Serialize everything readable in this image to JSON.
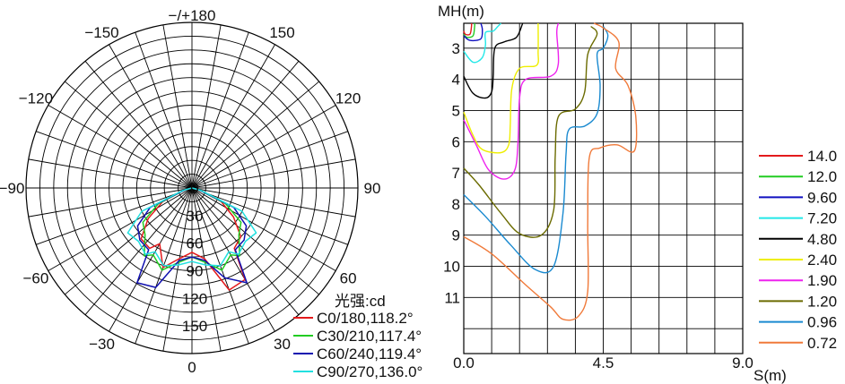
{
  "polar": {
    "angle_labels": [
      {
        "text": "−/+180",
        "deg": 180
      },
      {
        "text": "−150",
        "deg": -150
      },
      {
        "text": "150",
        "deg": 150
      },
      {
        "text": "−120",
        "deg": -120
      },
      {
        "text": "120",
        "deg": 120
      },
      {
        "text": "−90",
        "deg": -90
      },
      {
        "text": "90",
        "deg": 90
      },
      {
        "text": "−60",
        "deg": -60
      },
      {
        "text": "60",
        "deg": 60
      },
      {
        "text": "−30",
        "deg": -30
      },
      {
        "text": "30",
        "deg": 30
      },
      {
        "text": "0",
        "deg": 0
      }
    ],
    "radial_labels": [
      {
        "text": "0",
        "value": 0
      },
      {
        "text": "30",
        "value": 30
      },
      {
        "text": "60",
        "value": 60
      },
      {
        "text": "90",
        "value": 90
      },
      {
        "text": "120",
        "value": 120
      },
      {
        "text": "150",
        "value": 150
      }
    ],
    "unit_label": "光强:cd",
    "legend": [
      {
        "text": "C0/180,118.2°",
        "color": "#e31a1c"
      },
      {
        "text": "C30/210,117.4°",
        "color": "#22cc22"
      },
      {
        "text": "C60/240,119.4°",
        "color": "#1010b0"
      },
      {
        "text": "C90/270,136.0°",
        "color": "#22e0e0"
      }
    ]
  },
  "contour": {
    "ylabel": "MH(m)",
    "xlabel": "S(m)",
    "y_ticks": [
      "3",
      "4",
      "5",
      "6",
      "7",
      "8",
      "9",
      "10",
      "11"
    ],
    "x_ticks": [
      "0.0",
      "4.5",
      "9.0"
    ],
    "legend": [
      {
        "text": "14.0",
        "color": "#e31a1c"
      },
      {
        "text": "12.0",
        "color": "#22cc22"
      },
      {
        "text": "9.60",
        "color": "#1010c0"
      },
      {
        "text": "7.20",
        "color": "#22e8e8"
      },
      {
        "text": "4.80",
        "color": "#000000"
      },
      {
        "text": "2.40",
        "color": "#eeee00"
      },
      {
        "text": "1.90",
        "color": "#ee22ee"
      },
      {
        "text": "1.20",
        "color": "#6b6b00"
      },
      {
        "text": "0.96",
        "color": "#1a8ad0"
      },
      {
        "text": "0.72",
        "color": "#f07a3a"
      }
    ]
  },
  "chart_data": [
    {
      "type": "polar",
      "unit": "光强:cd",
      "r_ticks": [
        0,
        30,
        60,
        90,
        120,
        150
      ],
      "angle_ticks": [
        0,
        30,
        60,
        90,
        120,
        150,
        180,
        -150,
        -120,
        -90,
        -60,
        -30
      ],
      "series": [
        {
          "name": "C0/180,118.2°",
          "angles": [
            -75,
            -65,
            -55,
            -45,
            -35,
            -30,
            -20,
            -10,
            0,
            10,
            20,
            30,
            35,
            45,
            55,
            65,
            75
          ],
          "values": [
            8,
            35,
            58,
            78,
            80,
            70,
            92,
            78,
            70,
            78,
            118,
            115,
            80,
            75,
            55,
            35,
            8
          ]
        },
        {
          "name": "C30/210,117.4°",
          "angles": [
            -75,
            -65,
            -55,
            -45,
            -35,
            -30,
            -20,
            -10,
            0,
            10,
            20,
            30,
            35,
            45,
            55,
            65,
            75
          ],
          "values": [
            8,
            40,
            65,
            72,
            90,
            84,
            95,
            82,
            75,
            82,
            95,
            84,
            90,
            72,
            65,
            40,
            8
          ]
        },
        {
          "name": "C60/240,119.4°",
          "angles": [
            -75,
            -65,
            -55,
            -45,
            -35,
            -30,
            -20,
            -10,
            0,
            10,
            20,
            30,
            35,
            45,
            55,
            65,
            75
          ],
          "values": [
            8,
            50,
            72,
            80,
            82,
            119,
            115,
            80,
            75,
            80,
            104,
            119,
            82,
            80,
            72,
            50,
            8
          ]
        },
        {
          "name": "C90/270,136.0°",
          "angles": [
            -75,
            -65,
            -55,
            -45,
            -35,
            -30,
            -20,
            -10,
            0,
            10,
            20,
            30,
            35,
            45,
            55,
            65,
            75
          ],
          "values": [
            10,
            60,
            85,
            82,
            88,
            80,
            90,
            85,
            80,
            85,
            90,
            80,
            88,
            82,
            85,
            60,
            10
          ]
        }
      ]
    },
    {
      "type": "contour",
      "xlabel": "S(m)",
      "ylabel": "MH(m)",
      "xlim": [
        0,
        9
      ],
      "ylim": [
        2.2,
        12.8
      ],
      "levels": [
        {
          "level": "14.0",
          "points": [
            [
              0,
              2.45
            ],
            [
              0.05,
              2.55
            ],
            [
              0.2,
              2.55
            ],
            [
              0.25,
              2.3
            ],
            [
              0.25,
              2.2
            ]
          ]
        },
        {
          "level": "12.0",
          "points": [
            [
              0,
              2.55
            ],
            [
              0.1,
              2.65
            ],
            [
              0.3,
              2.6
            ],
            [
              0.35,
              2.3
            ],
            [
              0.35,
              2.2
            ]
          ]
        },
        {
          "level": "9.60",
          "points": [
            [
              0,
              2.6
            ],
            [
              0.2,
              2.75
            ],
            [
              0.55,
              2.7
            ],
            [
              0.6,
              2.4
            ],
            [
              0.55,
              2.2
            ]
          ]
        },
        {
          "level": "7.20",
          "points": [
            [
              0,
              3.1
            ],
            [
              0.3,
              3.45
            ],
            [
              0.6,
              3.3
            ],
            [
              0.7,
              2.9
            ],
            [
              0.7,
              2.5
            ],
            [
              0.95,
              2.45
            ],
            [
              1.1,
              2.3
            ],
            [
              1.2,
              2.2
            ]
          ]
        },
        {
          "level": "4.80",
          "points": [
            [
              0,
              3.9
            ],
            [
              0.3,
              4.45
            ],
            [
              0.7,
              4.6
            ],
            [
              0.9,
              4.4
            ],
            [
              0.95,
              3.9
            ],
            [
              1.0,
              3.0
            ],
            [
              1.3,
              2.8
            ],
            [
              1.7,
              2.65
            ],
            [
              1.9,
              2.2
            ]
          ]
        },
        {
          "level": "2.40",
          "points": [
            [
              0,
              5.05
            ],
            [
              0.3,
              5.8
            ],
            [
              0.6,
              6.25
            ],
            [
              1.2,
              6.35
            ],
            [
              1.45,
              6.1
            ],
            [
              1.5,
              5.5
            ],
            [
              1.55,
              4.3
            ],
            [
              1.8,
              3.65
            ],
            [
              2.35,
              3.55
            ],
            [
              2.4,
              3.1
            ],
            [
              2.4,
              2.2
            ]
          ]
        },
        {
          "level": "1.90",
          "points": [
            [
              0,
              5.3
            ],
            [
              0.4,
              6.1
            ],
            [
              0.8,
              6.9
            ],
            [
              1.3,
              7.2
            ],
            [
              1.65,
              6.9
            ],
            [
              1.75,
              6.0
            ],
            [
              1.8,
              4.6
            ],
            [
              2.0,
              4.0
            ],
            [
              2.8,
              3.9
            ],
            [
              3.05,
              3.5
            ],
            [
              3.0,
              2.5
            ],
            [
              3.05,
              2.2
            ]
          ]
        },
        {
          "level": "1.20",
          "points": [
            [
              0,
              6.85
            ],
            [
              0.5,
              7.4
            ],
            [
              1.2,
              8.3
            ],
            [
              1.8,
              8.95
            ],
            [
              2.5,
              9.0
            ],
            [
              2.9,
              8.2
            ],
            [
              2.95,
              6.5
            ],
            [
              3.05,
              5.2
            ],
            [
              3.6,
              4.95
            ],
            [
              3.9,
              4.4
            ],
            [
              4.0,
              3.2
            ],
            [
              4.3,
              2.55
            ],
            [
              4.1,
              2.3
            ]
          ]
        },
        {
          "level": "0.96",
          "points": [
            [
              0,
              7.7
            ],
            [
              0.7,
              8.4
            ],
            [
              1.5,
              9.3
            ],
            [
              2.3,
              10.1
            ],
            [
              2.9,
              10.0
            ],
            [
              3.2,
              8.3
            ],
            [
              3.3,
              6.4
            ],
            [
              3.4,
              5.6
            ],
            [
              3.9,
              5.5
            ],
            [
              4.3,
              5.1
            ],
            [
              4.4,
              4.2
            ],
            [
              4.3,
              3.2
            ],
            [
              4.5,
              3.0
            ],
            [
              4.65,
              2.6
            ],
            [
              4.5,
              2.3
            ]
          ]
        },
        {
          "level": "0.72",
          "points": [
            [
              0,
              9.05
            ],
            [
              0.9,
              9.6
            ],
            [
              2.0,
              10.6
            ],
            [
              2.8,
              11.3
            ],
            [
              3.2,
              11.7
            ],
            [
              3.7,
              11.6
            ],
            [
              4.0,
              10.8
            ],
            [
              4.0,
              8.6
            ],
            [
              4.05,
              6.5
            ],
            [
              4.4,
              6.2
            ],
            [
              4.95,
              6.1
            ],
            [
              5.5,
              6.3
            ],
            [
              5.55,
              5.2
            ],
            [
              5.3,
              4.2
            ],
            [
              4.9,
              3.65
            ],
            [
              5.0,
              2.8
            ],
            [
              4.5,
              2.35
            ],
            [
              4.2,
              2.2
            ]
          ]
        }
      ]
    }
  ]
}
